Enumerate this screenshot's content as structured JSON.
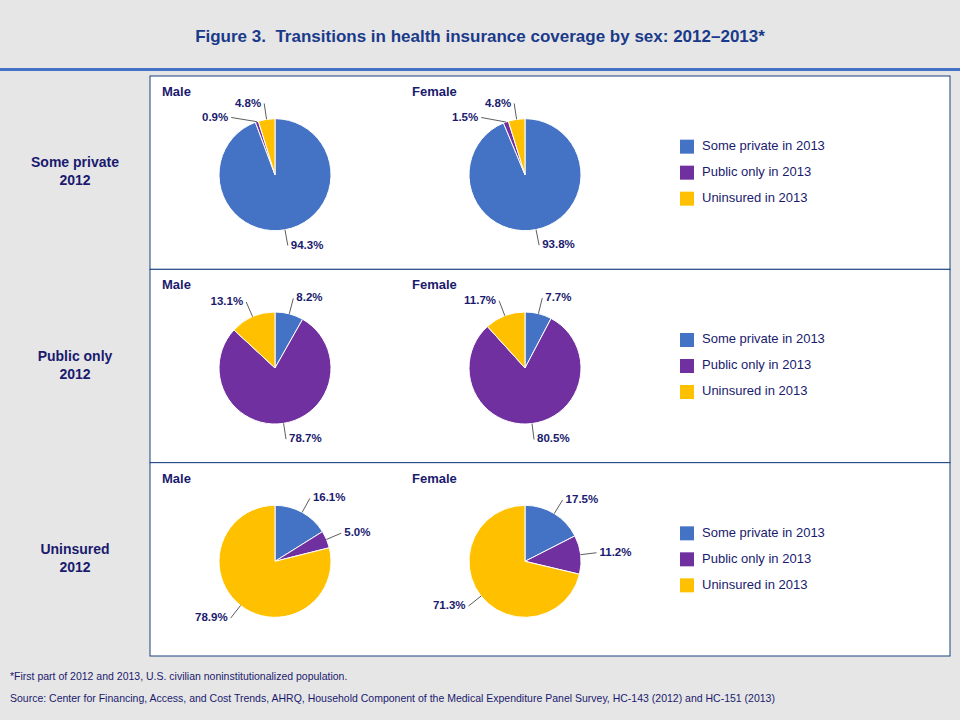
{
  "chart_data": {
    "type": "pie",
    "title": "Figure 3.  Transitions in health insurance coverage by sex: 2012–2013*",
    "categories": [
      "Some private in 2013",
      "Public only in 2013",
      "Uninsured in 2013"
    ],
    "colors": [
      "#4472c4",
      "#7030a0",
      "#ffc000"
    ],
    "legend": "right",
    "data_labels": true,
    "notes": [
      "*First part of 2012 and 2013, U.S. civilian noninstitutionalized population.",
      "Source: Center for Financing, Access, and Cost Trends, AHRQ, Household Component of the Medical Expenditure Panel Survey, HC-143 (2012) and HC-151 (2013)"
    ],
    "rows": [
      {
        "label": "Some private\n2012",
        "pies": [
          {
            "title": "Male",
            "values": [
              94.3,
              0.9,
              4.8
            ],
            "value_labels": [
              "94.3%",
              "0.9%",
              "4.8%"
            ]
          },
          {
            "title": "Female",
            "values": [
              93.8,
              1.5,
              4.8
            ],
            "value_labels": [
              "93.8%",
              "1.5%",
              "4.8%"
            ]
          }
        ]
      },
      {
        "label": "Public only\n2012",
        "pies": [
          {
            "title": "Male",
            "values": [
              8.2,
              78.7,
              13.1
            ],
            "value_labels": [
              "8.2%",
              "78.7%",
              "13.1%"
            ]
          },
          {
            "title": "Female",
            "values": [
              7.7,
              80.5,
              11.7
            ],
            "value_labels": [
              "7.7%",
              "80.5%",
              "11.7%"
            ]
          }
        ]
      },
      {
        "label": "Uninsured\n2012",
        "pies": [
          {
            "title": "Male",
            "values": [
              16.1,
              5.0,
              78.9
            ],
            "value_labels": [
              "16.1%",
              "5.0%",
              "78.9%"
            ]
          },
          {
            "title": "Female",
            "values": [
              17.5,
              11.2,
              71.3
            ],
            "value_labels": [
              "17.5%",
              "11.2%",
              "71.3%"
            ]
          }
        ]
      }
    ]
  }
}
